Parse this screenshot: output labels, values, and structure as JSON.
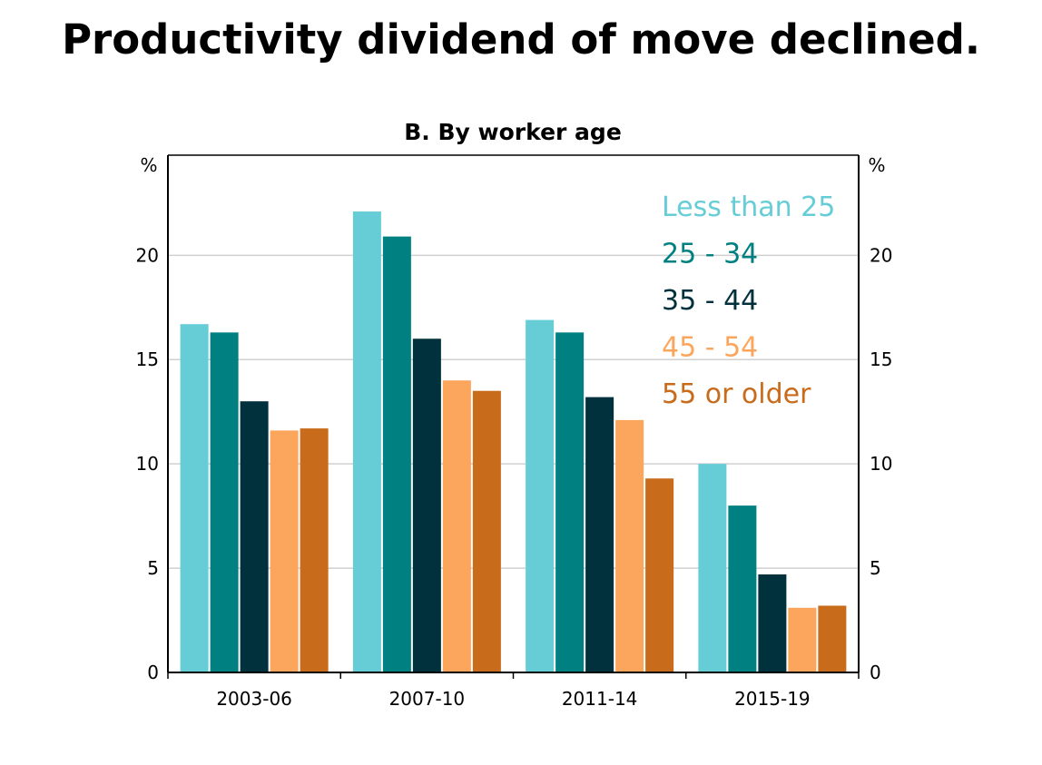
{
  "headline": "Productivity dividend of move declined.",
  "chart_data": {
    "type": "bar",
    "title": "B. By worker age",
    "xlabel": "",
    "ylabel": "%",
    "ylabel_right": "%",
    "ylim": [
      0,
      24.8
    ],
    "yticks": [
      0,
      5,
      10,
      15,
      20
    ],
    "grid": true,
    "legend_position": "top-right",
    "categories": [
      "2003-06",
      "2007-10",
      "2011-14",
      "2015-19"
    ],
    "series": [
      {
        "name": "Less than 25",
        "color": "#66CDD7",
        "values": [
          16.7,
          22.1,
          16.9,
          10.0
        ]
      },
      {
        "name": "25 - 34",
        "color": "#008080",
        "values": [
          16.3,
          20.9,
          16.3,
          8.0
        ]
      },
      {
        "name": "35 - 44",
        "color": "#00313C",
        "values": [
          13.0,
          16.0,
          13.2,
          4.7
        ]
      },
      {
        "name": "45 - 54",
        "color": "#FCA55D",
        "values": [
          11.6,
          14.0,
          12.1,
          3.1
        ]
      },
      {
        "name": "55 or older",
        "color": "#C86B1A",
        "values": [
          11.7,
          13.5,
          9.3,
          3.2
        ]
      }
    ]
  }
}
